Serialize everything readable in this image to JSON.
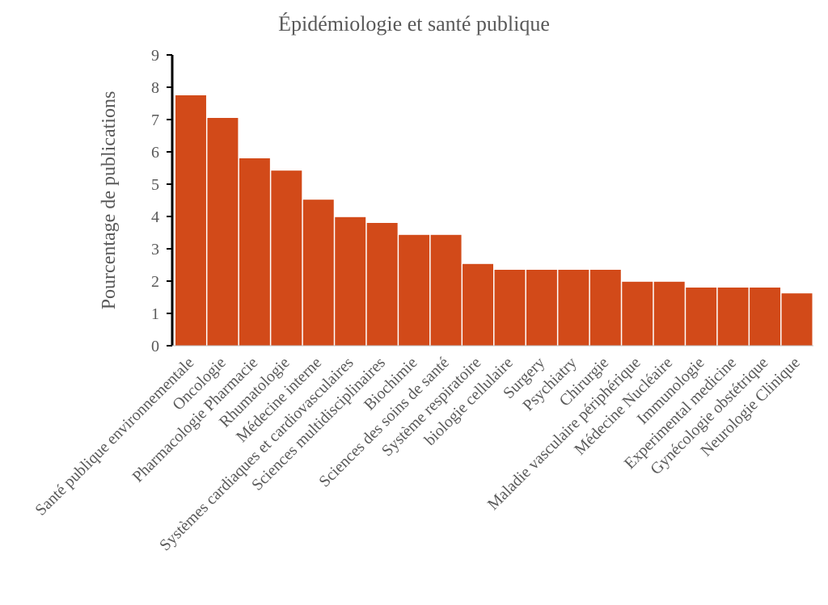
{
  "chart_data": {
    "type": "bar",
    "title": "Épidémiologie et santé publique",
    "xlabel": "",
    "ylabel": "Pourcentage de publications",
    "ylim": [
      0,
      9
    ],
    "yticks": [
      0,
      1,
      2,
      3,
      4,
      5,
      6,
      7,
      8,
      9
    ],
    "grid": false,
    "bar_color": "#d24a19",
    "categories": [
      "Santé publique environnementale",
      "Oncologie",
      "Pharmacologie Pharmacie",
      "Rhumatologie",
      "Médecine interne",
      "Systèmes cardiaques et cardiovasculaires",
      "Sciences multidisciplinaires",
      "Biochimie",
      "Sciences des soins de santé",
      "Système respiratoire",
      "biologie cellulaire",
      "Surgery",
      "Psychiatry",
      "Chirurgie",
      "Maladie vasculaire périphérique",
      "Médecine Nucléaire",
      "Immunologie",
      "Experimental medicine",
      "Gynécologie obstétrique",
      "Neurologie Clinique"
    ],
    "values": [
      7.75,
      7.05,
      5.8,
      5.42,
      4.52,
      3.98,
      3.8,
      3.43,
      3.43,
      2.53,
      2.35,
      2.35,
      2.35,
      2.35,
      1.98,
      1.98,
      1.8,
      1.8,
      1.8,
      1.62
    ]
  }
}
